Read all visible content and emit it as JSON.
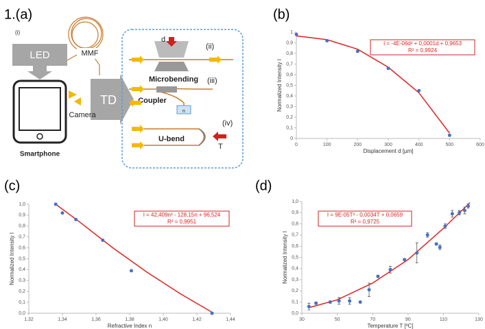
{
  "figure_label": "1.(a)",
  "diagram": {
    "panel_i": "(i)",
    "led": "LED",
    "mmf": "MMF",
    "td": "TD",
    "camera": "Camera",
    "smartphone": "Smartphone",
    "d": "d",
    "panel_ii": "(ii)",
    "microbending": "Microbending",
    "panel_iii": "(iii)",
    "coupler": "Coupler",
    "n": "n",
    "panel_iv": "(iv)",
    "ubend": "U-bend",
    "t": "T"
  },
  "chart_data": [
    {
      "type": "scatter",
      "title": "(b)",
      "x_label": "Displacement d [µm]",
      "y_label": "Normalized Intensity I",
      "equation": "I = -4E-06d² + 0,0001d + 0,9653",
      "r_squared": "R² = 0,9924",
      "x": [
        0,
        100,
        200,
        300,
        400,
        500
      ],
      "values": [
        0.98,
        0.92,
        0.82,
        0.66,
        0.45,
        0.03
      ],
      "color": "#4472c4",
      "trendline": {
        "color": "#e02020",
        "x": [
          0,
          100,
          200,
          300,
          400,
          500
        ],
        "values": [
          0.965,
          0.93,
          0.84,
          0.67,
          0.43,
          0.05
        ]
      },
      "xlim": [
        0,
        600
      ],
      "xticks": [
        0,
        100,
        200,
        300,
        400,
        500,
        600
      ],
      "ylim": [
        0,
        1
      ],
      "yticks": [
        0,
        {
          "value": 0.1,
          "label": "0,1"
        },
        {
          "value": 0.2,
          "label": "0,2"
        },
        {
          "value": 0.3,
          "label": "0,3"
        },
        {
          "value": 0.4,
          "label": "0,4"
        },
        {
          "value": 0.5,
          "label": "0,5"
        },
        {
          "value": 0.6,
          "label": "0,6"
        },
        {
          "value": 0.7,
          "label": "0,7"
        },
        {
          "value": 0.8,
          "label": "0,8"
        },
        {
          "value": 0.9,
          "label": "0,9"
        },
        1
      ]
    },
    {
      "type": "scatter",
      "title": "(c)",
      "x_label": "Refractive Index n",
      "y_label": "Normalized Intensity I",
      "equation": "I = 42,409n² - 128,15n + 96,524",
      "r_squared": "R² = 0,9951",
      "x": [
        1.336,
        1.34,
        1.348,
        1.364,
        1.381,
        1.429
      ],
      "values": [
        1.0,
        0.92,
        0.86,
        0.67,
        0.39,
        0.0
      ],
      "color": "#4472c4",
      "trendline": {
        "color": "#e02020",
        "x": [
          1.336,
          1.35,
          1.37,
          1.39,
          1.41,
          1.43
        ],
        "values": [
          1.0,
          0.84,
          0.6,
          0.38,
          0.18,
          0.0
        ]
      },
      "xlim": [
        1.32,
        1.44
      ],
      "xticks": [
        {
          "value": 1.32,
          "label": "1,32"
        },
        {
          "value": 1.34,
          "label": "1,34"
        },
        {
          "value": 1.36,
          "label": "1,36"
        },
        {
          "value": 1.38,
          "label": "1,38"
        },
        {
          "value": 1.4,
          "label": "1,40"
        },
        {
          "value": 1.42,
          "label": "1,42"
        },
        {
          "value": 1.44,
          "label": "1,44"
        }
      ],
      "ylim": [
        0,
        1
      ],
      "yticks": [
        {
          "value": 0,
          "label": "0,0"
        },
        {
          "value": 0.1,
          "label": "0,1"
        },
        {
          "value": 0.2,
          "label": "0,2"
        },
        {
          "value": 0.3,
          "label": "0,3"
        },
        {
          "value": 0.4,
          "label": "0,4"
        },
        {
          "value": 0.5,
          "label": "0,5"
        },
        {
          "value": 0.6,
          "label": "0,6"
        },
        {
          "value": 0.7,
          "label": "0,7"
        },
        {
          "value": 0.8,
          "label": "0,8"
        },
        {
          "value": 0.9,
          "label": "0,9"
        },
        {
          "value": 1,
          "label": "1,0"
        }
      ]
    },
    {
      "type": "scatter",
      "title": "(d)",
      "x_label": "Temperature T [ºC]",
      "y_label": "Normalized Intensity I",
      "equation": "I = 9E-05T² - 0,0034T + 0,0659",
      "r_squared": "R² = 0,9725",
      "x": [
        34,
        38,
        46,
        51,
        57,
        63,
        68,
        73,
        80,
        88,
        95,
        101,
        106,
        108,
        111,
        115,
        119,
        122,
        124
      ],
      "values": [
        0.06,
        0.09,
        0.1,
        0.11,
        0.11,
        0.1,
        0.21,
        0.33,
        0.39,
        0.48,
        0.54,
        0.7,
        0.62,
        0.59,
        0.78,
        0.89,
        0.9,
        0.92,
        0.96
      ],
      "errors": [
        0.03,
        0.01,
        0.01,
        0.03,
        0.03,
        0.005,
        0.06,
        0.01,
        0.03,
        0.01,
        0.09,
        0.02,
        0.01,
        0.02,
        0.02,
        0.03,
        0.02,
        0.03,
        0.02
      ],
      "color": "#4472c4",
      "trendline": {
        "color": "#e02020",
        "x": [
          34,
          50,
          70,
          90,
          110,
          125
        ],
        "values": [
          0.05,
          0.12,
          0.27,
          0.48,
          0.76,
          0.99
        ]
      },
      "xlim": [
        30,
        130
      ],
      "xticks": [
        30,
        50,
        70,
        90,
        110,
        130
      ],
      "ylim": [
        0,
        1
      ],
      "yticks": [
        {
          "value": 0,
          "label": "0,0"
        },
        {
          "value": 0.1,
          "label": "0,1"
        },
        {
          "value": 0.2,
          "label": "0,2"
        },
        {
          "value": 0.3,
          "label": "0,3"
        },
        {
          "value": 0.4,
          "label": "0,4"
        },
        {
          "value": 0.5,
          "label": "0,5"
        },
        {
          "value": 0.6,
          "label": "0,6"
        },
        {
          "value": 0.7,
          "label": "0,7"
        },
        {
          "value": 0.8,
          "label": "0,8"
        },
        {
          "value": 0.9,
          "label": "0,9"
        },
        {
          "value": 1,
          "label": "1,0"
        }
      ]
    }
  ]
}
